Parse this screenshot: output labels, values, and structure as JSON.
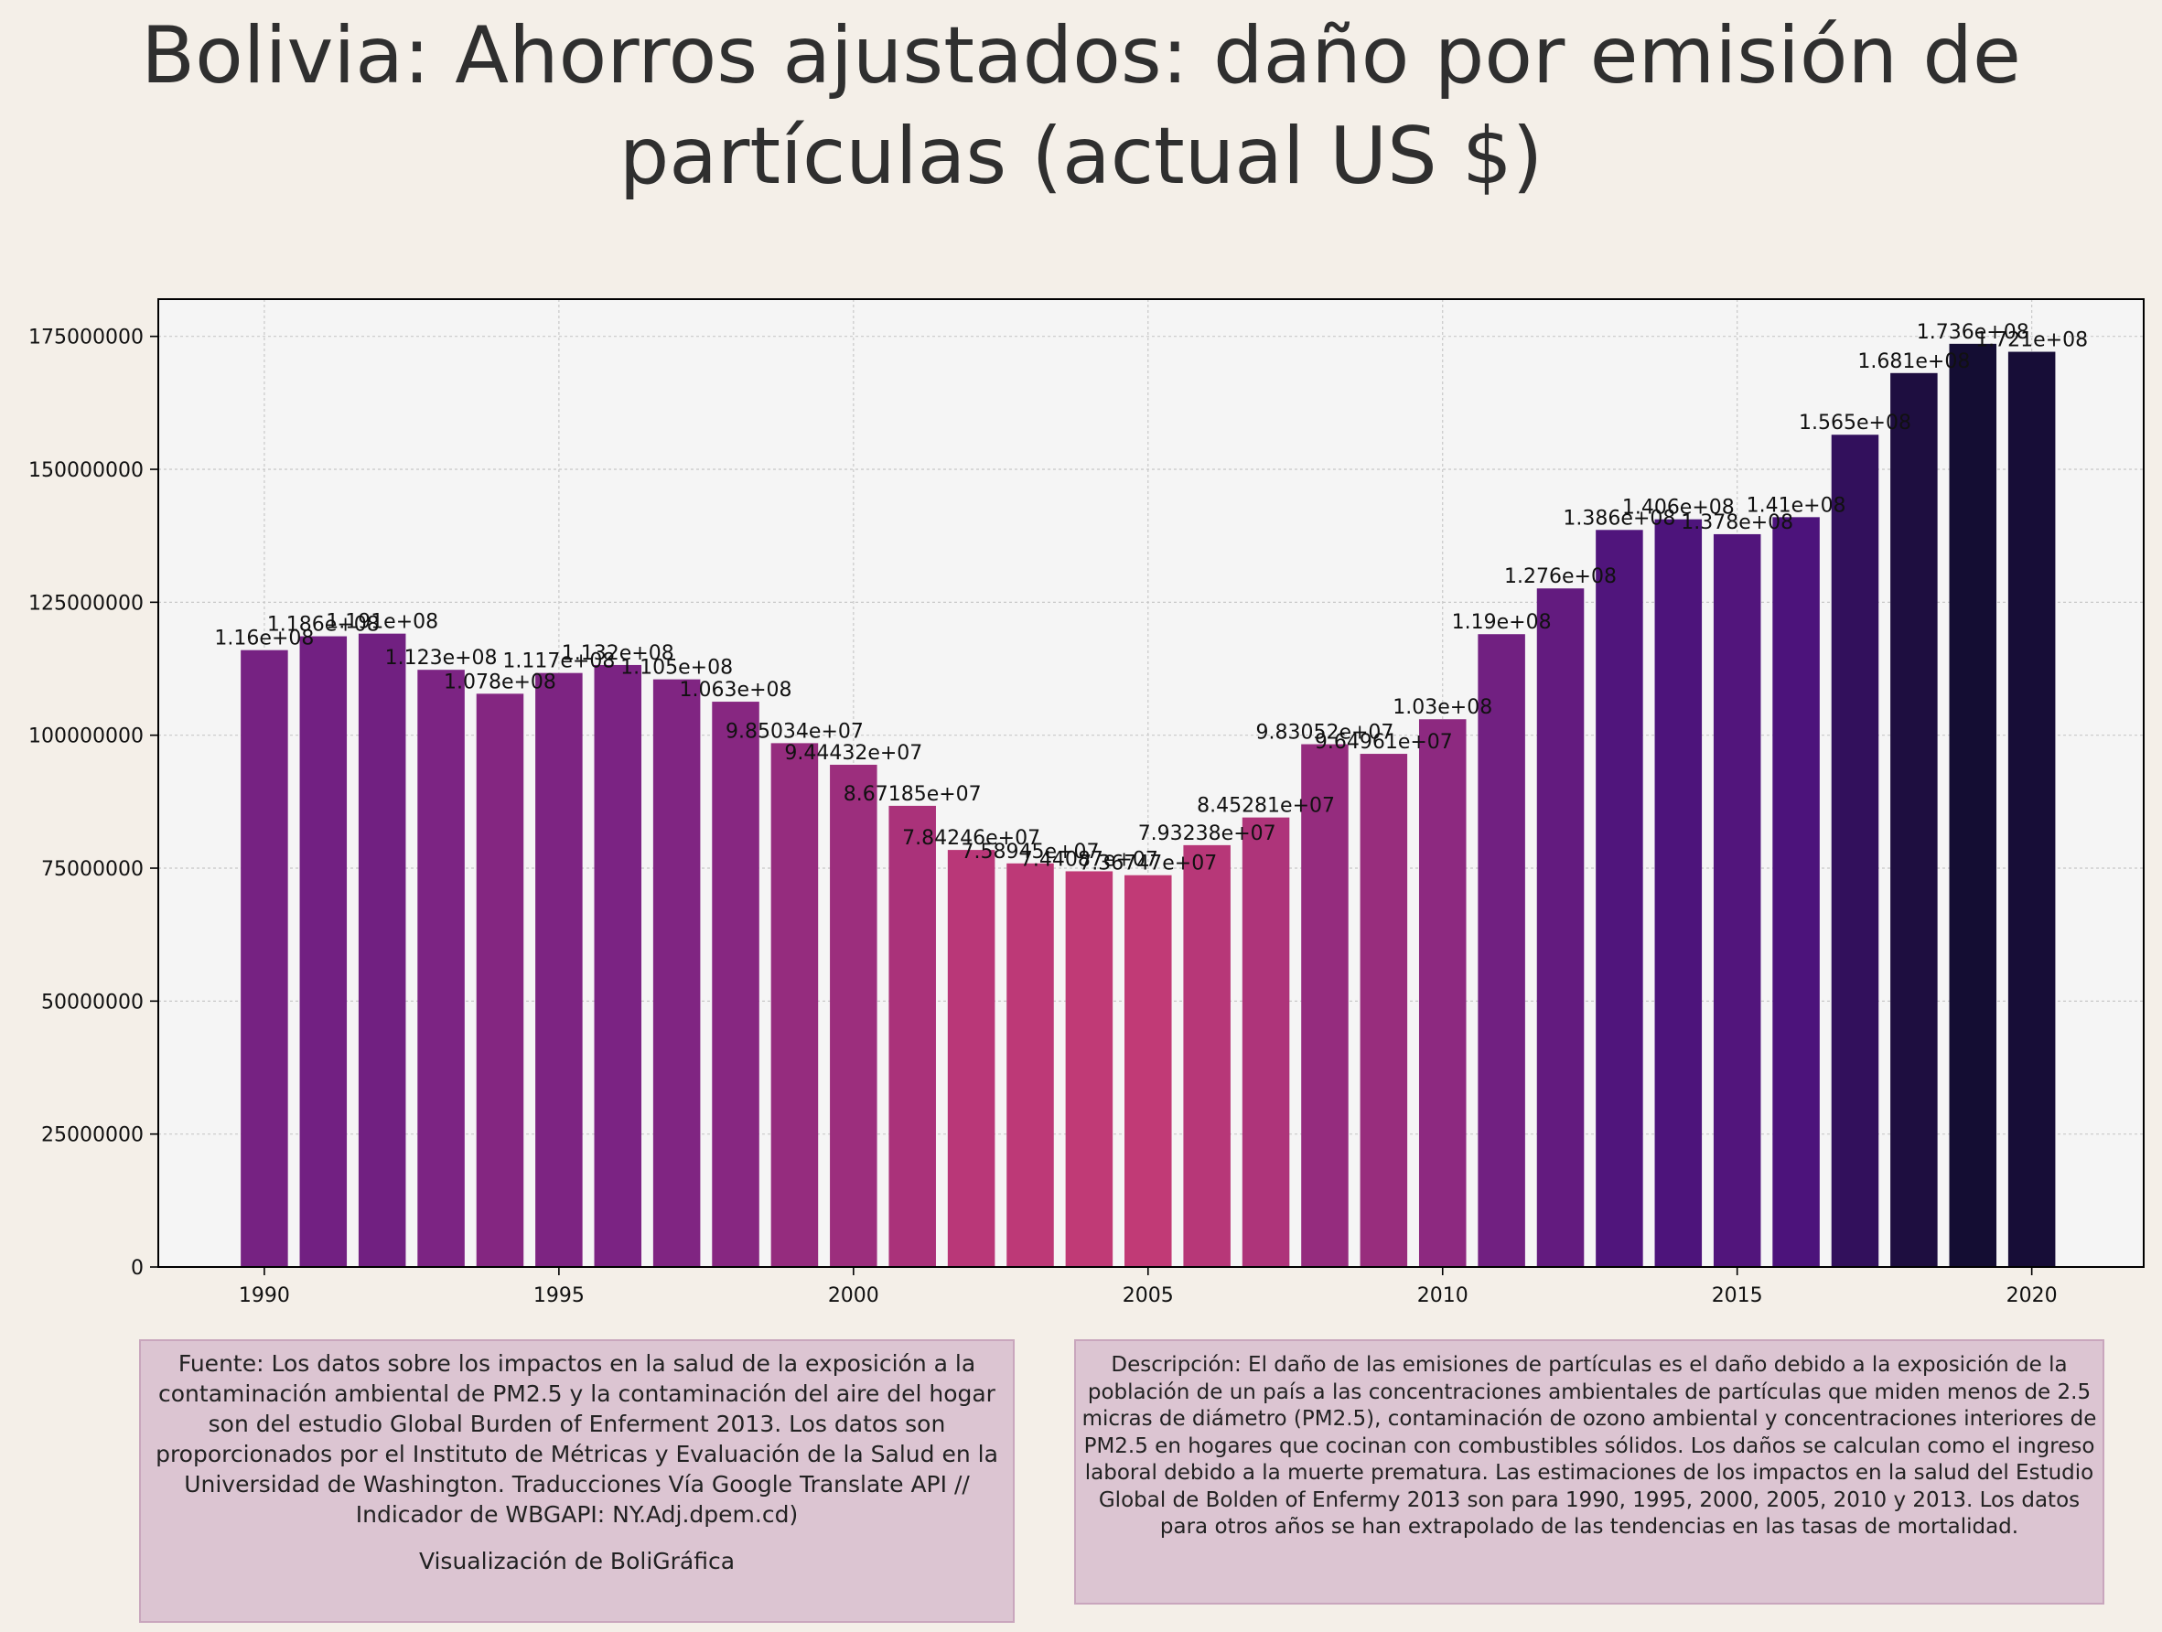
{
  "title": "Bolivia:  Ahorros ajustados: daño por emisión de partículas (actual US $)",
  "source_text": "Fuente: Los datos sobre los impactos en la salud de la exposición a la contaminación ambiental de PM2.5 y la contaminación del aire del hogar son del estudio Global Burden of Enferment 2013. Los datos son proporcionados por el Instituto de Métricas y Evaluación de la Salud en la Universidad de Washington. Traducciones Vía Google Translate API // Indicador de WBGAPI: NY.Adj.dpem.cd)",
  "source_credit": "Visualización de BoliGráfica",
  "description_text": "Descripción: El daño de las emisiones de partículas es el daño debido a la exposición de la población de un país a las concentraciones ambientales de partículas que miden menos de 2.5 micras de diámetro (PM2.5), contaminación de ozono ambiental y concentraciones interiores de PM2.5 en hogares que cocinan con combustibles sólidos. Los daños se calculan como el ingreso laboral debido a la muerte prematura. Las estimaciones de los impactos en la salud del Estudio Global de Bolden of Enfermy 2013 son para 1990, 1995, 2000, 2005, 2010 y 2013. Los datos para otros años se han extrapolado de las tendencias en las tasas de mortalidad.",
  "chart_data": {
    "type": "bar",
    "title": "Bolivia:  Ahorros ajustados: daño por emisión de partículas (actual US $)",
    "xlabel": "",
    "ylabel": "",
    "x": [
      1990,
      1991,
      1992,
      1993,
      1994,
      1995,
      1996,
      1997,
      1998,
      1999,
      2000,
      2001,
      2002,
      2003,
      2004,
      2005,
      2006,
      2007,
      2008,
      2009,
      2010,
      2011,
      2012,
      2013,
      2014,
      2015,
      2016,
      2017,
      2018,
      2019,
      2020
    ],
    "values": [
      116000000,
      118600000,
      119100000,
      112300000,
      107800000,
      111700000,
      113200000,
      110500000,
      106300000,
      98503400,
      94443200,
      86718500,
      78424600,
      75894500,
      74408700,
      73674700,
      79323800,
      84528100,
      98305200,
      96496100,
      103000000,
      119000000,
      127600000,
      138600000,
      140600000,
      137800000,
      141000000,
      156500000,
      168100000,
      173600000,
      172100000
    ],
    "data_labels": [
      "1.16e+08",
      "1.186e+08",
      "1.191e+08",
      "1.123e+08",
      "1.078e+08",
      "1.117e+08",
      "1.132e+08",
      "1.105e+08",
      "1.063e+08",
      "9.85034e+07",
      "9.44432e+07",
      "8.67185e+07",
      "7.84246e+07",
      "7.58945e+07",
      "7.44087e+07",
      "7.36747e+07",
      "7.93238e+07",
      "8.45281e+07",
      "9.83052e+07",
      "9.64961e+07",
      "1.03e+08",
      "1.19e+08",
      "1.276e+08",
      "1.386e+08",
      "1.406e+08",
      "1.378e+08",
      "1.41e+08",
      "1.565e+08",
      "1.681e+08",
      "1.736e+08",
      "1.721e+08"
    ],
    "xticks": [
      1990,
      1995,
      2000,
      2005,
      2010,
      2015,
      2020
    ],
    "yticks": [
      0,
      25000000,
      50000000,
      75000000,
      100000000,
      125000000,
      150000000,
      175000000
    ],
    "xlim": [
      1988.2,
      2021.9
    ],
    "ylim": [
      0,
      182000000
    ],
    "grid": true,
    "legend": "none",
    "colormap": "magma-like (color varies with value)",
    "colors": {
      "background": "#f4efe8",
      "plot_background": "#f5f5f5",
      "low_value_bar": "#c13a76",
      "mid_value_bar": "#7a2383",
      "high_value_bar": "#140d33",
      "note_box": "#dcc5d2"
    }
  }
}
